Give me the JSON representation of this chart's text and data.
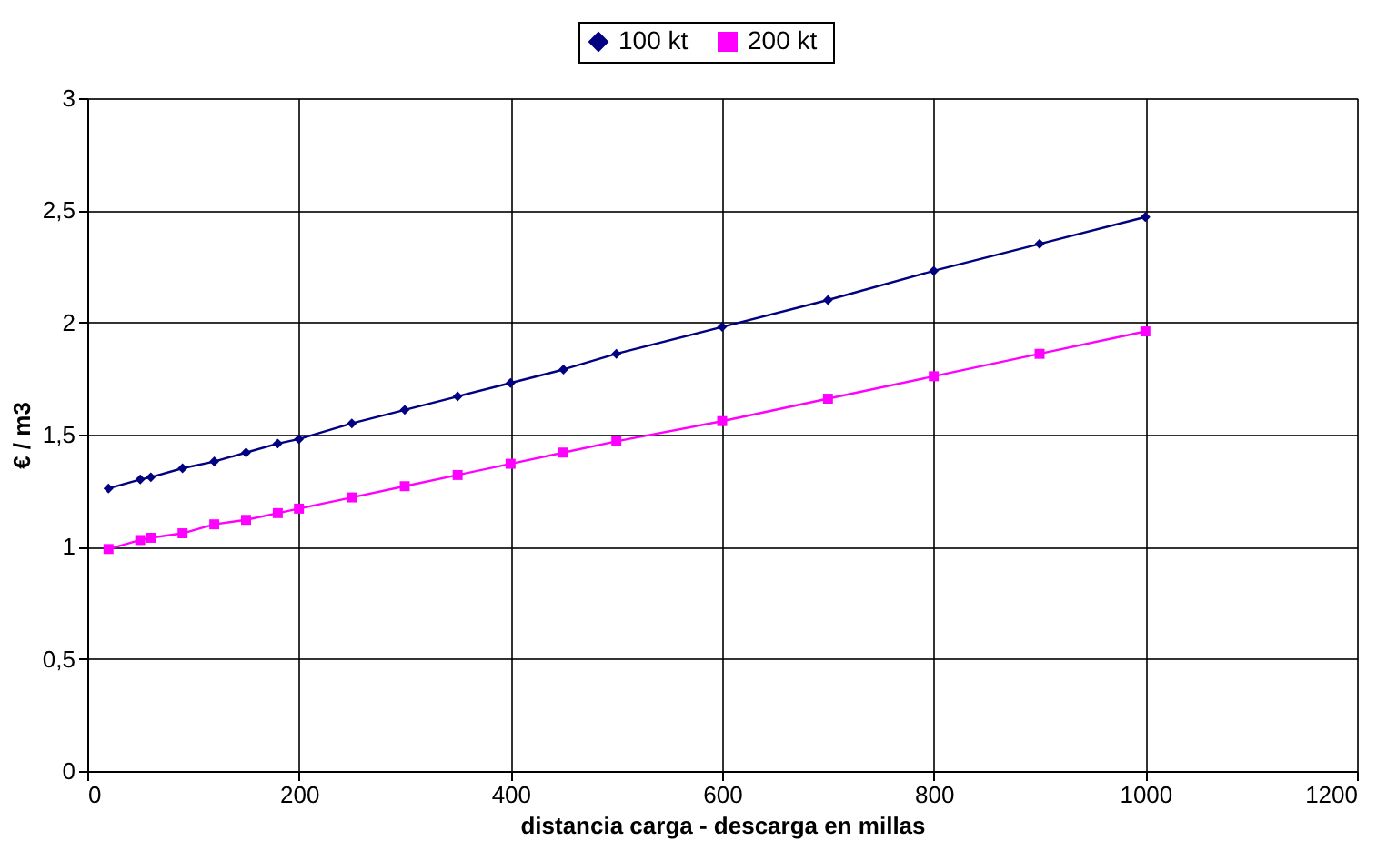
{
  "chart_data": {
    "type": "line",
    "xlabel": "distancia carga - descarga en millas",
    "ylabel": "€ / m3",
    "x": [
      20,
      50,
      60,
      90,
      120,
      150,
      180,
      200,
      250,
      300,
      350,
      400,
      450,
      500,
      600,
      700,
      800,
      900,
      1000
    ],
    "series": [
      {
        "name": "100  kt",
        "color": "#000080",
        "marker": "diamond",
        "values": [
          1.26,
          1.3,
          1.31,
          1.35,
          1.38,
          1.42,
          1.46,
          1.48,
          1.55,
          1.61,
          1.67,
          1.73,
          1.79,
          1.86,
          1.98,
          2.1,
          2.23,
          2.35,
          2.47
        ]
      },
      {
        "name": "200  kt",
        "color": "#ff00ff",
        "marker": "square",
        "values": [
          0.99,
          1.03,
          1.04,
          1.06,
          1.1,
          1.12,
          1.15,
          1.17,
          1.22,
          1.27,
          1.32,
          1.37,
          1.42,
          1.47,
          1.56,
          1.66,
          1.76,
          1.86,
          1.96
        ]
      }
    ],
    "xlim": [
      0,
      1200
    ],
    "xticks": [
      0,
      200,
      400,
      600,
      800,
      1000,
      1200
    ],
    "ylim": [
      0,
      3
    ],
    "yticks": [
      0,
      {
        "value": 0.5,
        "label": "0,5"
      },
      1,
      {
        "value": 1.5,
        "label": "1,5"
      },
      2,
      {
        "value": 2.5,
        "label": "2,5"
      },
      3
    ],
    "grid": true,
    "legend": "top"
  }
}
